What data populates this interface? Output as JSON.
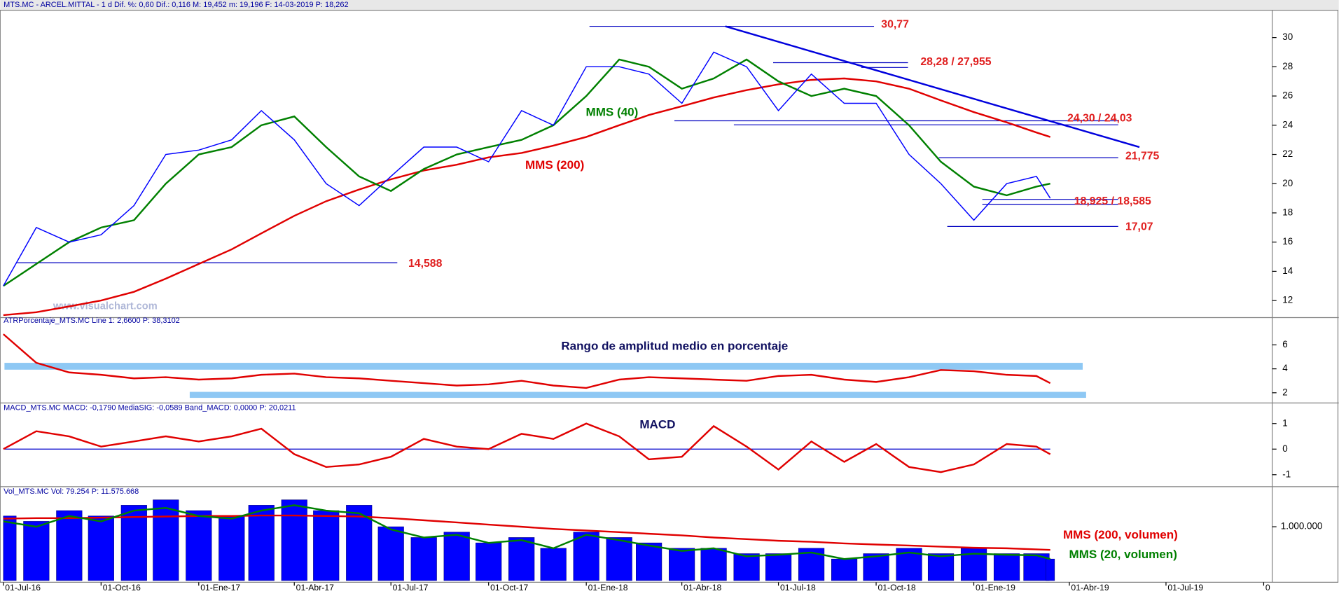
{
  "header": "MTS.MC - ARCEL.MITTAL - 1 d  Dif. %: 0,60  Dif.: 0,116  M: 19,452  m: 19,196  F: 14-03-2019  P: 18,262",
  "watermark": "www.visualchart.com",
  "chart_data": [
    {
      "type": "line",
      "x": [
        "2016-07-01",
        "2016-08-01",
        "2016-09-01",
        "2016-10-01",
        "2016-11-01",
        "2016-12-01",
        "2017-01-01",
        "2017-02-01",
        "2017-03-01",
        "2017-04-01",
        "2017-05-01",
        "2017-06-01",
        "2017-07-01",
        "2017-08-01",
        "2017-09-01",
        "2017-10-01",
        "2017-11-01",
        "2017-12-01",
        "2018-01-01",
        "2018-02-01",
        "2018-03-01",
        "2018-04-01",
        "2018-05-01",
        "2018-06-01",
        "2018-07-01",
        "2018-08-01",
        "2018-09-01",
        "2018-10-01",
        "2018-11-01",
        "2018-12-01",
        "2019-01-01",
        "2019-02-01",
        "2019-03-01",
        "2019-03-14"
      ],
      "xlim": [
        "2016-06-28",
        "2019-10-01"
      ],
      "ylim": [
        10.95,
        31.87
      ],
      "yticks": [
        12,
        14,
        16,
        18,
        20,
        22,
        24,
        26,
        28,
        30
      ],
      "series": [
        {
          "name": "MMS (200)",
          "color": "#e00000",
          "values": [
            11.0,
            11.2,
            11.6,
            12.0,
            12.6,
            13.5,
            14.5,
            15.5,
            16.6,
            17.8,
            18.8,
            19.6,
            20.3,
            20.9,
            21.3,
            21.8,
            22.1,
            22.6,
            23.2,
            24.0,
            24.7,
            25.3,
            25.9,
            26.4,
            26.8,
            27.1,
            27.2,
            27.0,
            26.5,
            25.7,
            24.9,
            24.2,
            23.5,
            23.2
          ]
        },
        {
          "name": "MMS (40)",
          "color": "#008000",
          "values": [
            13.0,
            14.5,
            16.0,
            17.0,
            17.5,
            20.0,
            22.0,
            22.5,
            24.0,
            24.6,
            22.5,
            20.5,
            19.5,
            21.0,
            22.0,
            22.5,
            23.0,
            24.0,
            26.0,
            28.5,
            28.0,
            26.5,
            27.2,
            28.5,
            27.0,
            26.0,
            26.5,
            26.0,
            24.0,
            21.5,
            19.8,
            19.2,
            19.8,
            20.0
          ]
        },
        {
          "color": "#0000ff",
          "values": [
            13.0,
            17.0,
            16.0,
            16.5,
            18.5,
            22.0,
            22.3,
            23.0,
            25.0,
            23.0,
            20.0,
            18.5,
            20.5,
            22.5,
            22.5,
            21.5,
            25.0,
            24.0,
            28.0,
            28.0,
            27.5,
            25.5,
            29.0,
            28.0,
            25.0,
            27.5,
            25.5,
            25.5,
            22.0,
            20.0,
            17.5,
            20.0,
            20.5,
            19.0
          ]
        }
      ],
      "levels": [
        {
          "label": "30,77",
          "values": [
            30.77
          ],
          "from": [
            "2018-01-04"
          ],
          "to": "2018-09-29"
        },
        {
          "label": "28,28 / 27,955",
          "values": [
            28.28,
            27.955
          ],
          "from": [
            "2018-06-26",
            "2018-09-17"
          ],
          "to": "2018-10-31"
        },
        {
          "label": "24,30 / 24,03",
          "values": [
            24.3,
            24.03
          ],
          "from": [
            "2018-03-25",
            "2018-05-20"
          ],
          "to": "2019-05-17"
        },
        {
          "label": "21,775",
          "values": [
            21.775
          ],
          "from": [
            "2018-11-29"
          ],
          "to": "2019-05-17"
        },
        {
          "label": "18,925 / 18,585",
          "values": [
            18.925,
            18.585
          ],
          "from": [
            "2019-01-09",
            "2019-01-09"
          ],
          "to": "2019-05-17"
        },
        {
          "label": "17,07",
          "values": [
            17.07
          ],
          "from": [
            "2018-12-07"
          ],
          "to": "2019-05-17"
        },
        {
          "label": "14,588",
          "values": [
            14.588
          ],
          "from": [
            "2016-07-14"
          ],
          "to": "2017-07-07"
        }
      ],
      "trendline": {
        "x": [
          "2018-05-12",
          "2019-06-06"
        ],
        "values": [
          30.77,
          22.5
        ],
        "color": "#0000dd"
      }
    },
    {
      "type": "line",
      "header": "ATRPorcentaje_MTS.MC  Line 1: 2,6600  P: 38,3102",
      "title": "Rango de amplitud medio en porcentaje",
      "x": [
        "2016-07-01",
        "2016-08-01",
        "2016-09-01",
        "2016-10-01",
        "2016-11-01",
        "2016-12-01",
        "2017-01-01",
        "2017-02-01",
        "2017-03-01",
        "2017-04-01",
        "2017-05-01",
        "2017-06-01",
        "2017-07-01",
        "2017-08-01",
        "2017-09-01",
        "2017-10-01",
        "2017-11-01",
        "2017-12-01",
        "2018-01-01",
        "2018-02-01",
        "2018-03-01",
        "2018-04-01",
        "2018-05-01",
        "2018-06-01",
        "2018-07-01",
        "2018-08-01",
        "2018-09-01",
        "2018-10-01",
        "2018-11-01",
        "2018-12-01",
        "2019-01-01",
        "2019-02-01",
        "2019-03-01",
        "2019-03-14"
      ],
      "xlim": [
        "2016-06-28",
        "2019-10-01"
      ],
      "ylim": [
        1.29,
        7.71
      ],
      "yticks": [
        2,
        4,
        6
      ],
      "series": [
        {
          "color": "#e00000",
          "values": [
            6.9,
            4.5,
            3.7,
            3.5,
            3.2,
            3.3,
            3.1,
            3.2,
            3.5,
            3.6,
            3.3,
            3.2,
            3.0,
            2.8,
            2.6,
            2.7,
            3.0,
            2.6,
            2.4,
            3.1,
            3.3,
            3.2,
            3.1,
            3.0,
            3.4,
            3.5,
            3.1,
            2.9,
            3.3,
            3.9,
            3.8,
            3.5,
            3.4,
            2.8
          ]
        }
      ]
    },
    {
      "type": "line",
      "header": "MACD_MTS.MC  MACD: -0,1790  MediaSIG: -0,0589  Band_MACD: 0,0000  P: 20,0211",
      "title": "MACD",
      "x": [
        "2016-07-01",
        "2016-08-01",
        "2016-09-01",
        "2016-10-01",
        "2016-11-01",
        "2016-12-01",
        "2017-01-01",
        "2017-02-01",
        "2017-03-01",
        "2017-04-01",
        "2017-05-01",
        "2017-06-01",
        "2017-07-01",
        "2017-08-01",
        "2017-09-01",
        "2017-10-01",
        "2017-11-01",
        "2017-12-01",
        "2018-01-01",
        "2018-02-01",
        "2018-03-01",
        "2018-04-01",
        "2018-05-01",
        "2018-06-01",
        "2018-07-01",
        "2018-08-01",
        "2018-09-01",
        "2018-10-01",
        "2018-11-01",
        "2018-12-01",
        "2019-01-01",
        "2019-02-01",
        "2019-03-01",
        "2019-03-14"
      ],
      "xlim": [
        "2016-06-28",
        "2019-10-01"
      ],
      "ylim": [
        -1.4,
        1.47
      ],
      "yticks": [
        -1,
        0,
        1
      ],
      "zero_line": 0,
      "series": [
        {
          "color": "#e00000",
          "values": [
            0,
            0.7,
            0.5,
            0.1,
            0.3,
            0.5,
            0.3,
            0.5,
            0.8,
            -0.2,
            -0.7,
            -0.6,
            -0.3,
            0.4,
            0.1,
            0.0,
            0.6,
            0.4,
            1.0,
            0.5,
            -0.4,
            -0.3,
            0.9,
            0.1,
            -0.8,
            0.3,
            -0.5,
            0.2,
            -0.7,
            -0.9,
            -0.6,
            0.2,
            0.1,
            -0.2
          ]
        }
      ]
    },
    {
      "type": "bar",
      "header": "Vol_MTS.MC  Vol: 79.254  P: 11.575.668",
      "x": [
        "2016-07-01",
        "2016-08-01",
        "2016-09-01",
        "2016-10-01",
        "2016-11-01",
        "2016-12-01",
        "2017-01-01",
        "2017-02-01",
        "2017-03-01",
        "2017-04-01",
        "2017-05-01",
        "2017-06-01",
        "2017-07-01",
        "2017-08-01",
        "2017-09-01",
        "2017-10-01",
        "2017-11-01",
        "2017-12-01",
        "2018-01-01",
        "2018-02-01",
        "2018-03-01",
        "2018-04-01",
        "2018-05-01",
        "2018-06-01",
        "2018-07-01",
        "2018-08-01",
        "2018-09-01",
        "2018-10-01",
        "2018-11-01",
        "2018-12-01",
        "2019-01-01",
        "2019-02-01",
        "2019-03-01",
        "2019-03-14"
      ],
      "xlim": [
        "2016-06-28",
        "2019-10-01"
      ],
      "ylim": [
        0,
        1587000
      ],
      "yticks": [
        {
          "value": 1000000,
          "label": "1.000.000"
        }
      ],
      "xticks": [
        {
          "value": "2016-07-01",
          "label": "01-Jul-16"
        },
        {
          "value": "2016-10-01",
          "label": "01-Oct-16"
        },
        {
          "value": "2017-01-01",
          "label": "01-Ene-17"
        },
        {
          "value": "2017-04-01",
          "label": "01-Abr-17"
        },
        {
          "value": "2017-07-01",
          "label": "01-Jul-17"
        },
        {
          "value": "2017-10-01",
          "label": "01-Oct-17"
        },
        {
          "value": "2018-01-01",
          "label": "01-Ene-18"
        },
        {
          "value": "2018-04-01",
          "label": "01-Abr-18"
        },
        {
          "value": "2018-07-01",
          "label": "01-Jul-18"
        },
        {
          "value": "2018-10-01",
          "label": "01-Oct-18"
        },
        {
          "value": "2019-01-01",
          "label": "01-Ene-19"
        },
        {
          "value": "2019-04-01",
          "label": "01-Abr-19"
        },
        {
          "value": "2019-07-01",
          "label": "01-Jul-19"
        },
        {
          "value": "2019-10-01",
          "label": "0"
        }
      ],
      "series": [
        {
          "type": "bar",
          "color": "#0000ff",
          "values": [
            1200000,
            1100000,
            1300000,
            1200000,
            1400000,
            1500000,
            1300000,
            1200000,
            1400000,
            1500000,
            1300000,
            1400000,
            1000000,
            800000,
            900000,
            700000,
            800000,
            600000,
            900000,
            800000,
            700000,
            600000,
            600000,
            500000,
            500000,
            600000,
            400000,
            500000,
            600000,
            500000,
            600000,
            500000,
            500000,
            400000
          ]
        },
        {
          "type": "line",
          "name": "MMS (200, volumen)",
          "color": "#e00000",
          "values": [
            1150000,
            1160000,
            1160000,
            1170000,
            1180000,
            1190000,
            1200000,
            1200000,
            1210000,
            1210000,
            1200000,
            1190000,
            1160000,
            1120000,
            1080000,
            1040000,
            1000000,
            960000,
            930000,
            900000,
            870000,
            840000,
            800000,
            770000,
            740000,
            720000,
            690000,
            670000,
            650000,
            630000,
            610000,
            600000,
            580000,
            570000
          ]
        },
        {
          "type": "line",
          "name": "MMS (20, volumen)",
          "color": "#008000",
          "values": [
            1100000,
            1000000,
            1200000,
            1100000,
            1300000,
            1350000,
            1200000,
            1150000,
            1300000,
            1400000,
            1300000,
            1250000,
            950000,
            800000,
            850000,
            700000,
            750000,
            600000,
            850000,
            750000,
            650000,
            550000,
            600000,
            450000,
            480000,
            520000,
            400000,
            450000,
            520000,
            450000,
            500000,
            480000,
            470000,
            400000
          ]
        }
      ]
    }
  ]
}
